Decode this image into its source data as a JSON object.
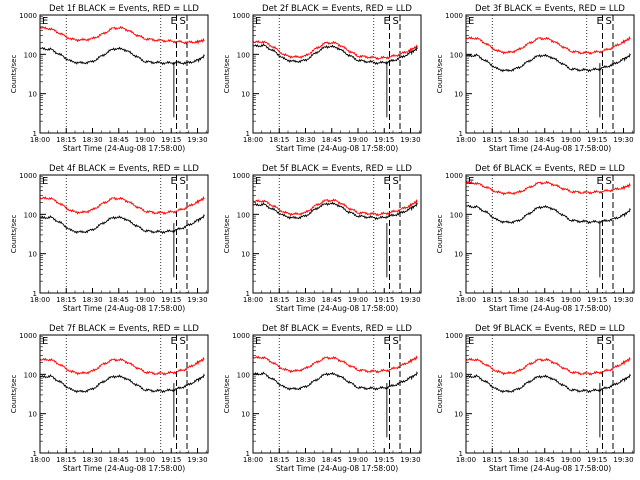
{
  "chart_data": [
    {
      "type": "line",
      "title": "Det 1f BLACK = Events, RED = LLD",
      "xlabel": "Start Time (24-Aug-08 17:58:00)",
      "ylabel": "Counts/sec",
      "yscale": "log",
      "ylim": [
        1,
        1000
      ],
      "x_ticks": [
        "18:00",
        "18:15",
        "18:30",
        "18:45",
        "19:00",
        "19:15",
        "19:30"
      ],
      "y_ticks": [
        "1",
        "10",
        "100",
        "1000"
      ],
      "annotations": [
        "E",
        "S"
      ],
      "series": [
        {
          "color": "#ff0000",
          "times": [
            "18:00",
            "18:06",
            "18:12",
            "18:18",
            "18:24",
            "18:30",
            "18:36",
            "18:42",
            "18:48",
            "18:54",
            "19:00",
            "19:06",
            "19:12",
            "19:18",
            "19:24",
            "19:30",
            "19:34"
          ],
          "values": [
            470,
            450,
            330,
            240,
            230,
            250,
            330,
            470,
            460,
            330,
            250,
            230,
            220,
            210,
            200,
            210,
            230
          ]
        },
        {
          "color": "#000000",
          "times": [
            "18:00",
            "18:06",
            "18:12",
            "18:18",
            "18:24",
            "18:30",
            "18:36",
            "18:42",
            "18:48",
            "18:54",
            "19:00",
            "19:06",
            "19:12",
            "19:18",
            "19:24",
            "19:30",
            "19:34"
          ],
          "values": [
            140,
            135,
            95,
            65,
            60,
            65,
            95,
            140,
            135,
            95,
            65,
            62,
            60,
            62,
            60,
            70,
            90
          ]
        }
      ]
    },
    {
      "type": "line",
      "title": "Det 2f BLACK = Events, RED = LLD",
      "xlabel": "Start Time (24-Aug-08 17:58:00)",
      "ylabel": "Counts/sec",
      "yscale": "log",
      "ylim": [
        1,
        1000
      ],
      "x_ticks": [
        "18:00",
        "18:15",
        "18:30",
        "18:45",
        "19:00",
        "19:15",
        "19:30"
      ],
      "y_ticks": [
        "1",
        "10",
        "100",
        "1000"
      ],
      "annotations": [
        "E",
        "S"
      ],
      "series": [
        {
          "color": "#ff0000",
          "times": [
            "18:00",
            "18:06",
            "18:12",
            "18:18",
            "18:24",
            "18:30",
            "18:36",
            "18:42",
            "18:48",
            "18:54",
            "19:00",
            "19:06",
            "19:12",
            "19:18",
            "19:24",
            "19:30",
            "19:34"
          ],
          "values": [
            200,
            210,
            150,
            95,
            85,
            90,
            140,
            200,
            190,
            130,
            90,
            85,
            80,
            85,
            100,
            130,
            160
          ]
        },
        {
          "color": "#000000",
          "times": [
            "18:00",
            "18:06",
            "18:12",
            "18:18",
            "18:24",
            "18:30",
            "18:36",
            "18:42",
            "18:48",
            "18:54",
            "19:00",
            "19:06",
            "19:12",
            "19:18",
            "19:24",
            "19:30",
            "19:34"
          ],
          "values": [
            160,
            170,
            120,
            75,
            65,
            70,
            110,
            160,
            150,
            100,
            70,
            65,
            60,
            65,
            80,
            110,
            140
          ]
        }
      ]
    },
    {
      "type": "line",
      "title": "Det 3f BLACK = Events, RED = LLD",
      "xlabel": "Start Time (24-Aug-08 17:58:00)",
      "ylabel": "Counts/sec",
      "yscale": "log",
      "ylim": [
        1,
        1000
      ],
      "x_ticks": [
        "18:00",
        "18:15",
        "18:30",
        "18:45",
        "19:00",
        "19:15",
        "19:30"
      ],
      "y_ticks": [
        "1",
        "10",
        "100",
        "1000"
      ],
      "annotations": [
        "E",
        "S"
      ],
      "series": [
        {
          "color": "#ff0000",
          "times": [
            "18:00",
            "18:06",
            "18:12",
            "18:18",
            "18:24",
            "18:30",
            "18:36",
            "18:42",
            "18:48",
            "18:54",
            "19:00",
            "19:06",
            "19:12",
            "19:18",
            "19:24",
            "19:30",
            "19:34"
          ],
          "values": [
            250,
            260,
            180,
            120,
            110,
            130,
            190,
            260,
            240,
            170,
            120,
            110,
            110,
            120,
            150,
            210,
            260
          ]
        },
        {
          "color": "#000000",
          "times": [
            "18:00",
            "18:06",
            "18:12",
            "18:18",
            "18:24",
            "18:30",
            "18:36",
            "18:42",
            "18:48",
            "18:54",
            "19:00",
            "19:06",
            "19:12",
            "19:18",
            "19:24",
            "19:30",
            "19:34"
          ],
          "values": [
            90,
            95,
            65,
            42,
            38,
            45,
            68,
            95,
            88,
            62,
            42,
            40,
            40,
            45,
            55,
            75,
            95
          ]
        }
      ]
    },
    {
      "type": "line",
      "title": "Det 4f BLACK = Events, RED = LLD",
      "xlabel": "Start Time (24-Aug-08 17:58:00)",
      "ylabel": "Counts/sec",
      "yscale": "log",
      "ylim": [
        1,
        1000
      ],
      "x_ticks": [
        "18:00",
        "18:15",
        "18:30",
        "18:45",
        "19:00",
        "19:15",
        "19:30"
      ],
      "y_ticks": [
        "1",
        "10",
        "100",
        "1000"
      ],
      "annotations": [
        "E",
        "S"
      ],
      "series": [
        {
          "color": "#ff0000",
          "times": [
            "18:00",
            "18:06",
            "18:12",
            "18:18",
            "18:24",
            "18:30",
            "18:36",
            "18:42",
            "18:48",
            "18:54",
            "19:00",
            "19:06",
            "19:12",
            "19:18",
            "19:24",
            "19:30",
            "19:34"
          ],
          "values": [
            250,
            260,
            180,
            120,
            110,
            130,
            190,
            260,
            240,
            170,
            120,
            110,
            110,
            120,
            150,
            210,
            260
          ]
        },
        {
          "color": "#000000",
          "times": [
            "18:00",
            "18:06",
            "18:12",
            "18:18",
            "18:24",
            "18:30",
            "18:36",
            "18:42",
            "18:48",
            "18:54",
            "19:00",
            "19:06",
            "19:12",
            "19:18",
            "19:24",
            "19:30",
            "19:34"
          ],
          "values": [
            80,
            85,
            60,
            38,
            35,
            40,
            60,
            85,
            80,
            55,
            38,
            36,
            36,
            40,
            50,
            70,
            90
          ]
        }
      ]
    },
    {
      "type": "line",
      "title": "Det 5f BLACK = Events, RED = LLD",
      "xlabel": "Start Time (24-Aug-08 17:58:00)",
      "ylabel": "Counts/sec",
      "yscale": "log",
      "ylim": [
        1,
        1000
      ],
      "x_ticks": [
        "18:00",
        "18:15",
        "18:30",
        "18:45",
        "19:00",
        "19:15",
        "19:30"
      ],
      "y_ticks": [
        "1",
        "10",
        "100",
        "1000"
      ],
      "annotations": [
        "E",
        "S"
      ],
      "series": [
        {
          "color": "#ff0000",
          "times": [
            "18:00",
            "18:06",
            "18:12",
            "18:18",
            "18:24",
            "18:30",
            "18:36",
            "18:42",
            "18:48",
            "18:54",
            "19:00",
            "19:06",
            "19:12",
            "19:18",
            "19:24",
            "19:30",
            "19:34"
          ],
          "values": [
            210,
            220,
            160,
            110,
            100,
            110,
            170,
            230,
            220,
            150,
            110,
            105,
            100,
            110,
            130,
            170,
            220
          ]
        },
        {
          "color": "#000000",
          "times": [
            "18:00",
            "18:06",
            "18:12",
            "18:18",
            "18:24",
            "18:30",
            "18:36",
            "18:42",
            "18:48",
            "18:54",
            "19:00",
            "19:06",
            "19:12",
            "19:18",
            "19:24",
            "19:30",
            "19:34"
          ],
          "values": [
            170,
            180,
            130,
            90,
            80,
            90,
            140,
            190,
            180,
            120,
            90,
            85,
            80,
            90,
            105,
            140,
            180
          ]
        }
      ]
    },
    {
      "type": "line",
      "title": "Det 6f BLACK = Events, RED = LLD",
      "xlabel": "Start Time (24-Aug-08 17:58:00)",
      "ylabel": "Counts/sec",
      "yscale": "log",
      "ylim": [
        1,
        1000
      ],
      "x_ticks": [
        "18:00",
        "18:15",
        "18:30",
        "18:45",
        "19:00",
        "19:15",
        "19:30"
      ],
      "y_ticks": [
        "1",
        "10",
        "100",
        "1000"
      ],
      "annotations": [
        "E",
        "S"
      ],
      "series": [
        {
          "color": "#ff0000",
          "times": [
            "18:00",
            "18:06",
            "18:12",
            "18:18",
            "18:24",
            "18:30",
            "18:36",
            "18:42",
            "18:48",
            "18:54",
            "19:00",
            "19:06",
            "19:12",
            "19:18",
            "19:24",
            "19:30",
            "19:34"
          ],
          "values": [
            640,
            620,
            480,
            360,
            340,
            360,
            480,
            640,
            620,
            480,
            380,
            360,
            360,
            380,
            420,
            480,
            560
          ]
        },
        {
          "color": "#000000",
          "times": [
            "18:00",
            "18:06",
            "18:12",
            "18:18",
            "18:24",
            "18:30",
            "18:36",
            "18:42",
            "18:48",
            "18:54",
            "19:00",
            "19:06",
            "19:12",
            "19:18",
            "19:24",
            "19:30",
            "19:34"
          ],
          "values": [
            160,
            155,
            110,
            70,
            62,
            68,
            105,
            155,
            150,
            105,
            70,
            66,
            64,
            66,
            75,
            95,
            130
          ]
        }
      ]
    },
    {
      "type": "line",
      "title": "Det 7f BLACK = Events, RED = LLD",
      "xlabel": "Start Time (24-Aug-08 17:58:00)",
      "ylabel": "Counts/sec",
      "yscale": "log",
      "ylim": [
        1,
        1000
      ],
      "x_ticks": [
        "18:00",
        "18:15",
        "18:30",
        "18:45",
        "19:00",
        "19:15",
        "19:30"
      ],
      "y_ticks": [
        "1",
        "10",
        "100",
        "1000"
      ],
      "annotations": [
        "E",
        "S"
      ],
      "series": [
        {
          "color": "#ff0000",
          "times": [
            "18:00",
            "18:06",
            "18:12",
            "18:18",
            "18:24",
            "18:30",
            "18:36",
            "18:42",
            "18:48",
            "18:54",
            "19:00",
            "19:06",
            "19:12",
            "19:18",
            "19:24",
            "19:30",
            "19:34"
          ],
          "values": [
            230,
            240,
            170,
            115,
            105,
            120,
            180,
            240,
            225,
            160,
            115,
            105,
            105,
            115,
            140,
            200,
            250
          ]
        },
        {
          "color": "#000000",
          "times": [
            "18:00",
            "18:06",
            "18:12",
            "18:18",
            "18:24",
            "18:30",
            "18:36",
            "18:42",
            "18:48",
            "18:54",
            "19:00",
            "19:06",
            "19:12",
            "19:18",
            "19:24",
            "19:30",
            "19:34"
          ],
          "values": [
            85,
            90,
            62,
            40,
            36,
            42,
            65,
            90,
            84,
            58,
            40,
            38,
            38,
            42,
            52,
            72,
            92
          ]
        }
      ]
    },
    {
      "type": "line",
      "title": "Det 8f BLACK = Events, RED = LLD",
      "xlabel": "Start Time (24-Aug-08 17:58:00)",
      "ylabel": "Counts/sec",
      "yscale": "log",
      "ylim": [
        1,
        1000
      ],
      "x_ticks": [
        "18:00",
        "18:15",
        "18:30",
        "18:45",
        "19:00",
        "19:15",
        "19:30"
      ],
      "y_ticks": [
        "1",
        "10",
        "100",
        "1000"
      ],
      "annotations": [
        "E",
        "S"
      ],
      "series": [
        {
          "color": "#ff0000",
          "times": [
            "18:00",
            "18:06",
            "18:12",
            "18:18",
            "18:24",
            "18:30",
            "18:36",
            "18:42",
            "18:48",
            "18:54",
            "19:00",
            "19:06",
            "19:12",
            "19:18",
            "19:24",
            "19:30",
            "19:34"
          ],
          "values": [
            260,
            270,
            190,
            130,
            120,
            140,
            200,
            270,
            250,
            180,
            130,
            120,
            120,
            130,
            160,
            220,
            270
          ]
        },
        {
          "color": "#000000",
          "times": [
            "18:00",
            "18:06",
            "18:12",
            "18:18",
            "18:24",
            "18:30",
            "18:36",
            "18:42",
            "18:48",
            "18:54",
            "19:00",
            "19:06",
            "19:12",
            "19:18",
            "19:24",
            "19:30",
            "19:34"
          ],
          "values": [
            100,
            105,
            72,
            46,
            42,
            48,
            72,
            105,
            98,
            68,
            46,
            44,
            44,
            48,
            60,
            82,
            105
          ]
        }
      ]
    },
    {
      "type": "line",
      "title": "Det 9f BLACK = Events, RED = LLD",
      "xlabel": "Start Time (24-Aug-08 17:58:00)",
      "ylabel": "Counts/sec",
      "yscale": "log",
      "ylim": [
        1,
        1000
      ],
      "x_ticks": [
        "18:00",
        "18:15",
        "18:30",
        "18:45",
        "19:00",
        "19:15",
        "19:30"
      ],
      "y_ticks": [
        "1",
        "10",
        "100",
        "1000"
      ],
      "annotations": [
        "E",
        "S"
      ],
      "series": [
        {
          "color": "#ff0000",
          "times": [
            "18:00",
            "18:06",
            "18:12",
            "18:18",
            "18:24",
            "18:30",
            "18:36",
            "18:42",
            "18:48",
            "18:54",
            "19:00",
            "19:06",
            "19:12",
            "19:18",
            "19:24",
            "19:30",
            "19:34"
          ],
          "values": [
            230,
            240,
            170,
            115,
            105,
            120,
            180,
            240,
            225,
            160,
            115,
            105,
            105,
            115,
            140,
            200,
            250
          ]
        },
        {
          "color": "#000000",
          "times": [
            "18:00",
            "18:06",
            "18:12",
            "18:18",
            "18:24",
            "18:30",
            "18:36",
            "18:42",
            "18:48",
            "18:54",
            "19:00",
            "19:06",
            "19:12",
            "19:18",
            "19:24",
            "19:30",
            "19:34"
          ],
          "values": [
            85,
            90,
            62,
            40,
            36,
            42,
            65,
            90,
            84,
            58,
            40,
            38,
            38,
            42,
            52,
            72,
            92
          ]
        }
      ]
    }
  ]
}
